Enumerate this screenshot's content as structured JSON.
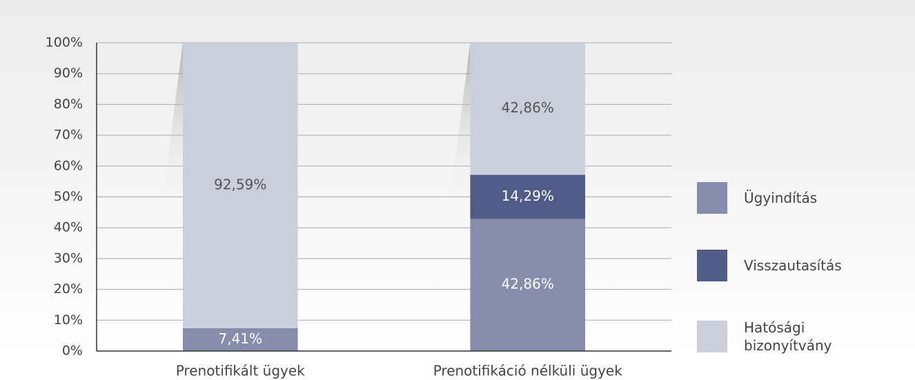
{
  "chart_data": {
    "type": "stacked_bar",
    "categories": [
      "Prenotifikált ügyek",
      "Prenotifikáció nélküli ügyek"
    ],
    "series": [
      {
        "name": "Ügyindítás",
        "color": "#878ead",
        "values": [
          7.41,
          42.86
        ],
        "value_labels": [
          "7,41%",
          "42,86%"
        ]
      },
      {
        "name": "Visszautasítás",
        "color": "#515b87",
        "values": [
          null,
          14.29
        ],
        "value_labels": [
          null,
          "14,29%"
        ]
      },
      {
        "name": "Hatósági bizonyítvány",
        "color": "#cbcfdc",
        "values": [
          92.59,
          42.86
        ],
        "value_labels": [
          "92,59%",
          "42,86%"
        ]
      }
    ],
    "ylim": [
      0,
      100
    ],
    "yticks": [
      {
        "value": 0,
        "label": "0%"
      },
      {
        "value": 10,
        "label": "10%"
      },
      {
        "value": 20,
        "label": "20%"
      },
      {
        "value": 30,
        "label": "30%"
      },
      {
        "value": 40,
        "label": "40%"
      },
      {
        "value": 50,
        "label": "50%"
      },
      {
        "value": 60,
        "label": "60%"
      },
      {
        "value": 70,
        "label": "70%"
      },
      {
        "value": 80,
        "label": "80%"
      },
      {
        "value": 90,
        "label": "90%"
      },
      {
        "value": 100,
        "label": "100%"
      }
    ],
    "grid": true,
    "legend": "right"
  }
}
